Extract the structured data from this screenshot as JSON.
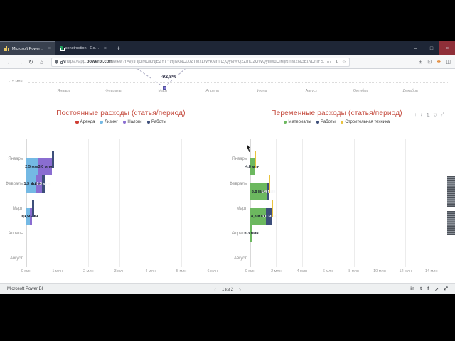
{
  "browser": {
    "tabs": [
      {
        "title": "Microsoft Power BI",
        "close": "×"
      },
      {
        "title": "construction - Google Табли…",
        "close": "×"
      }
    ],
    "new_tab": "+",
    "window_controls": {
      "minimize": "–",
      "maximize": "□",
      "close": "×"
    },
    "nav": {
      "back": "←",
      "forward": "→",
      "reload": "↻",
      "home": "⌂"
    },
    "url": {
      "prefix": "https://app.",
      "domain": "powerbi.com",
      "rest": "/view?r=eyJrIjoiMDlkNjE2YTYtYjNkNC00ZTMxLWFkMmItZjQyNWQzZmU2OWQyIiwidCI6IjRmM2NGEtNDhiYS1iOTFjLTUyMjI3YTk0NTA5MyJ9"
    },
    "url_actions": [
      {
        "name": "overflow",
        "glyph": "⋯"
      },
      {
        "name": "save-to-pocket",
        "glyph": "↧"
      },
      {
        "name": "bookmark-star",
        "glyph": "☆"
      }
    ],
    "toolbar_icons": [
      {
        "name": "library",
        "glyph": "⊞"
      },
      {
        "name": "screenshot",
        "glyph": "⊡"
      },
      {
        "name": "extension",
        "glyph": "❖"
      },
      {
        "name": "sidebar-menu",
        "glyph": "◫"
      }
    ]
  },
  "report": {
    "visual_header_icons": [
      {
        "name": "drill-up",
        "glyph": "↑"
      },
      {
        "name": "drill-down",
        "glyph": "↓"
      },
      {
        "name": "expand-hierarchy",
        "glyph": "⇅"
      },
      {
        "name": "filter",
        "glyph": "▽"
      },
      {
        "name": "focus-mode",
        "glyph": "⤢"
      }
    ],
    "footer": {
      "brand": "Microsoft Power BI",
      "page_label": "1 из 2",
      "prev": "‹",
      "next": "›",
      "icons": [
        {
          "name": "linkedin",
          "glyph": "in"
        },
        {
          "name": "twitter",
          "glyph": "t"
        },
        {
          "name": "facebook",
          "glyph": "f"
        },
        {
          "name": "share",
          "glyph": "↗"
        },
        {
          "name": "fullscreen",
          "glyph": "⤢"
        }
      ]
    }
  },
  "chart_data": [
    {
      "type": "line",
      "note": "partially visible line chart fragment at top",
      "y_tick": "-15 млн",
      "annotation": "-92,8%",
      "x_ticks": [
        "Январь",
        "Февраль",
        "Март",
        "Апрель",
        "Июнь",
        "Август",
        "Октябрь",
        "Декабрь"
      ],
      "annotation_x": "Март"
    },
    {
      "type": "bar",
      "orientation": "horizontal-stacked",
      "title": "Постоянные расходы (статья/период)",
      "legend": [
        {
          "name": "Аренда",
          "color": "#ce3c32"
        },
        {
          "name": "Лизинг",
          "color": "#74b9e4"
        },
        {
          "name": "Налоги",
          "color": "#8a6dd1"
        },
        {
          "name": "Работы",
          "color": "#3d4e7a"
        }
      ],
      "categories": [
        "Январь",
        "Февраль",
        "Март",
        "Апрель",
        "Август"
      ],
      "rows": [
        {
          "category": "Январь",
          "segments": [
            {
              "series": "Лизинг",
              "value": 2.5,
              "label": "2,5 млн"
            },
            {
              "series": "Налоги",
              "value": 3.0,
              "label": "3,0 млн"
            },
            {
              "series": "Работы",
              "value": 0.35,
              "label": ""
            }
          ]
        },
        {
          "category": "Февраль",
          "segments": [
            {
              "series": "Лизинг",
              "value": 1.3,
              "label": "1,3 млн"
            },
            {
              "series": "Налоги",
              "value": 0.9,
              "label": "0,9 млн"
            },
            {
              "series": "Работы",
              "value": 0.5,
              "label": "0,5 млн"
            }
          ]
        },
        {
          "category": "Март",
          "segments": [
            {
              "series": "Лизинг",
              "value": 0.7,
              "label": "0,7 млн"
            },
            {
              "series": "Налоги",
              "value": 0.5,
              "label": "0,5 млн"
            },
            {
              "series": "Работы",
              "value": 0.4,
              "label": ""
            }
          ]
        },
        {
          "category": "Апрель",
          "segments": [
            {
              "series": "Налоги",
              "value": 0.4,
              "label": ""
            },
            {
              "series": "Работы",
              "value": 0.3,
              "label": ""
            }
          ]
        },
        {
          "category": "Август",
          "segments": [
            {
              "series": "Аренда",
              "value": 0.2,
              "label": ""
            }
          ]
        }
      ],
      "x_axis": {
        "max": 6.05,
        "ticks": [
          {
            "label": "0 млн",
            "value": 0
          },
          {
            "label": "1 млн",
            "value": 1
          },
          {
            "label": "2 млн",
            "value": 2
          },
          {
            "label": "3 млн",
            "value": 3
          },
          {
            "label": "4 млн",
            "value": 4
          },
          {
            "label": "5 млн",
            "value": 5
          },
          {
            "label": "6 млн",
            "value": 6
          }
        ]
      }
    },
    {
      "type": "bar",
      "orientation": "horizontal-stacked",
      "title": "Переменные расходы (статья/период)",
      "legend": [
        {
          "name": "Материалы",
          "color": "#6cb85f"
        },
        {
          "name": "Работы",
          "color": "#3d4e7a"
        },
        {
          "name": "Строительная техника",
          "color": "#e9c33f"
        }
      ],
      "categories": [
        "Январь",
        "Февраль",
        "Март",
        "Апрель",
        "Август"
      ],
      "rows": [
        {
          "category": "Январь",
          "segments": [
            {
              "series": "Материалы",
              "value": 4.8,
              "label": "4,8 млн"
            },
            {
              "series": "Работы",
              "value": 0.12,
              "label": ""
            },
            {
              "series": "Строительная техника",
              "value": 0.22,
              "label": ""
            }
          ]
        },
        {
          "category": "Февраль",
          "segments": [
            {
              "series": "Материалы",
              "value": 8.8,
              "label": "8,8 млн"
            },
            {
              "series": "Работы",
              "value": 1.4,
              "label": "1,4 млн"
            },
            {
              "series": "Строительная техника",
              "value": 0.25,
              "label": ""
            }
          ]
        },
        {
          "category": "Март",
          "segments": [
            {
              "series": "Материалы",
              "value": 8.3,
              "label": "8,3 млн"
            },
            {
              "series": "Работы",
              "value": 3.0,
              "label": "3,0 млн"
            },
            {
              "series": "Строительная техника",
              "value": 0.45,
              "label": ""
            }
          ]
        },
        {
          "category": "Апрель",
          "segments": [
            {
              "series": "Материалы",
              "value": 2.3,
              "label": "2,3 млн"
            }
          ]
        },
        {
          "category": "Август",
          "segments": [
            {
              "series": "Материалы",
              "value": 0.4,
              "label": ""
            }
          ]
        }
      ],
      "x_axis": {
        "max": 14.95,
        "ticks": [
          {
            "label": "0 млн",
            "value": 0
          },
          {
            "label": "2 млн",
            "value": 2
          },
          {
            "label": "4 млн",
            "value": 4
          },
          {
            "label": "6 млн",
            "value": 6
          },
          {
            "label": "8 млн",
            "value": 8
          },
          {
            "label": "10 млн",
            "value": 10
          },
          {
            "label": "12 млн",
            "value": 12
          },
          {
            "label": "14 млн",
            "value": 14
          }
        ]
      }
    }
  ]
}
